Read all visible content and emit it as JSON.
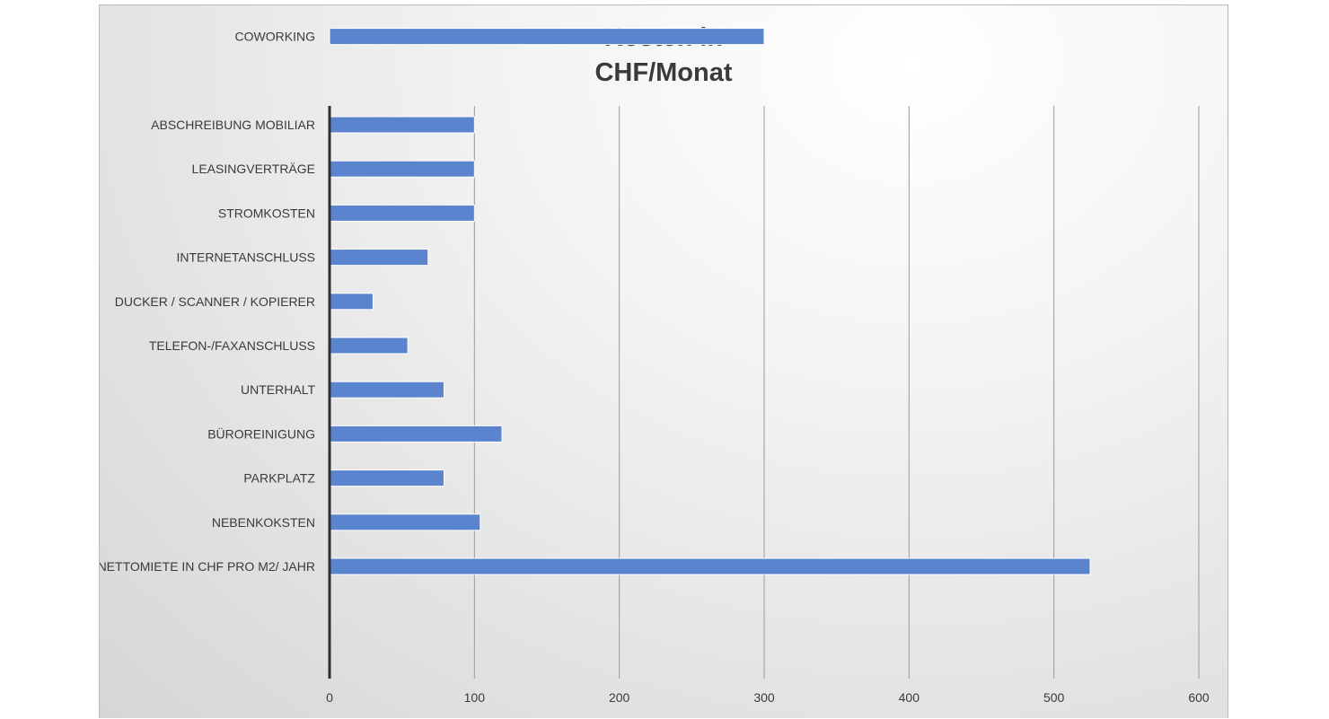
{
  "chart_data": {
    "type": "bar",
    "orientation": "horizontal",
    "title_lines": [
      "Kosten in",
      "CHF/Monat"
    ],
    "categories": [
      "NETTOMIETE IN CHF PRO M2/ JAHR",
      "NEBENKOKSTEN",
      "PARKPLATZ",
      "BÜROREINIGUNG",
      "UNTERHALT",
      "TELEFON-/FAXANSCHLUSS",
      "DUCKER / SCANNER / KOPIERER",
      "INTERNETANSCHLUSS",
      "STROMKOSTEN",
      "LEASINGVERTRÄGE",
      "ABSCHREIBUNG MOBILIAR",
      "",
      "COWORKING"
    ],
    "values": [
      525,
      104,
      79,
      119,
      79,
      54,
      30,
      68,
      100,
      100,
      100,
      null,
      300
    ],
    "xlim": [
      0,
      600
    ],
    "ticks": [
      "0",
      "100",
      "200",
      "300",
      "400",
      "500",
      "600"
    ],
    "grid": true,
    "bar_color": "#5b84cf",
    "gridline_color": "#9a9a9a",
    "axis_color": "#2f2f2f"
  }
}
